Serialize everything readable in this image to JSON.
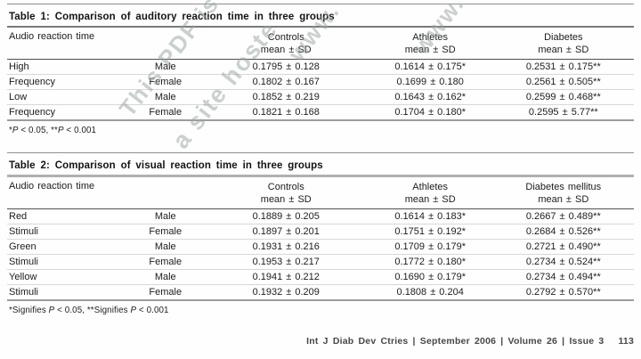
{
  "watermark": {
    "fragments": [
      "This PDF is",
      "a site hoste",
      "www.",
      "www."
    ]
  },
  "table1": {
    "title": "Table 1: Comparison of auditory reaction time in three groups",
    "col1_header": "Audio reaction time",
    "columns": [
      {
        "label": "Controls",
        "sub": "mean ± SD"
      },
      {
        "label": "Athletes",
        "sub": "mean ± SD"
      },
      {
        "label": "Diabetes",
        "sub": "mean ± SD"
      }
    ],
    "rows": [
      [
        "High",
        "Male",
        "0.1795 ± 0.128",
        "0.1614 ± 0.175*",
        "0.2531 ± 0.175**"
      ],
      [
        "Frequency",
        "Female",
        "0.1802 ± 0.167",
        "0.1699 ± 0.180",
        "0.2561 ± 0.505**"
      ],
      [
        "Low",
        "Male",
        "0.1852 ± 0.219",
        "0.1643 ± 0.162*",
        "0.2599 ± 0.468**"
      ],
      [
        "Frequency",
        "Female",
        "0.1821 ± 0.168",
        "0.1704 ± 0.180*",
        "0.2595 ± 5.77**"
      ]
    ],
    "footnote": {
      "s1": "*",
      "p1": "P",
      "s2": " < 0.05, **",
      "p2": "P",
      "s3": " < 0.001"
    }
  },
  "table2": {
    "title": "Table 2: Comparison of visual reaction time in three groups",
    "col1_header": "Audio reaction time",
    "columns": [
      {
        "label": "Controls",
        "sub": "mean ± SD"
      },
      {
        "label": "Athletes",
        "sub": "mean ± SD"
      },
      {
        "label": "Diabetes mellitus",
        "sub": "mean ± SD"
      }
    ],
    "rows": [
      [
        "Red",
        "Male",
        "0.1889 ± 0.205",
        "0.1614 ± 0.183*",
        "0.2667 ± 0.489**"
      ],
      [
        "Stimuli",
        "Female",
        "0.1897 ± 0.201",
        "0.1751 ± 0.192*",
        "0.2684 ± 0.526**"
      ],
      [
        "Green",
        "Male",
        "0.1931 ± 0.216",
        "0.1709 ± 0.179*",
        "0.2721 ± 0.490**"
      ],
      [
        "Stimuli",
        "Female",
        "0.1953 ± 0.217",
        "0.1772 ± 0.180*",
        "0.2734 ± 0.524**"
      ],
      [
        "Yellow",
        "Male",
        "0.1941 ± 0.212",
        "0.1690 ± 0.179*",
        "0.2734 ± 0.494**"
      ],
      [
        "Stimuli",
        "Female",
        "0.1932 ± 0.209",
        "0.1808 ± 0.204",
        "0.2792 ± 0.570**"
      ]
    ],
    "footnote": {
      "s1": "*Signifies ",
      "p1": "P",
      "s2": " < 0.05, **Signifies ",
      "p2": "P",
      "s3": " < 0.001"
    }
  },
  "footer": {
    "journal_line": "Int J Diab Dev Ctries | September 2006 | Volume 26 | Issue 3",
    "page_number": "113"
  }
}
